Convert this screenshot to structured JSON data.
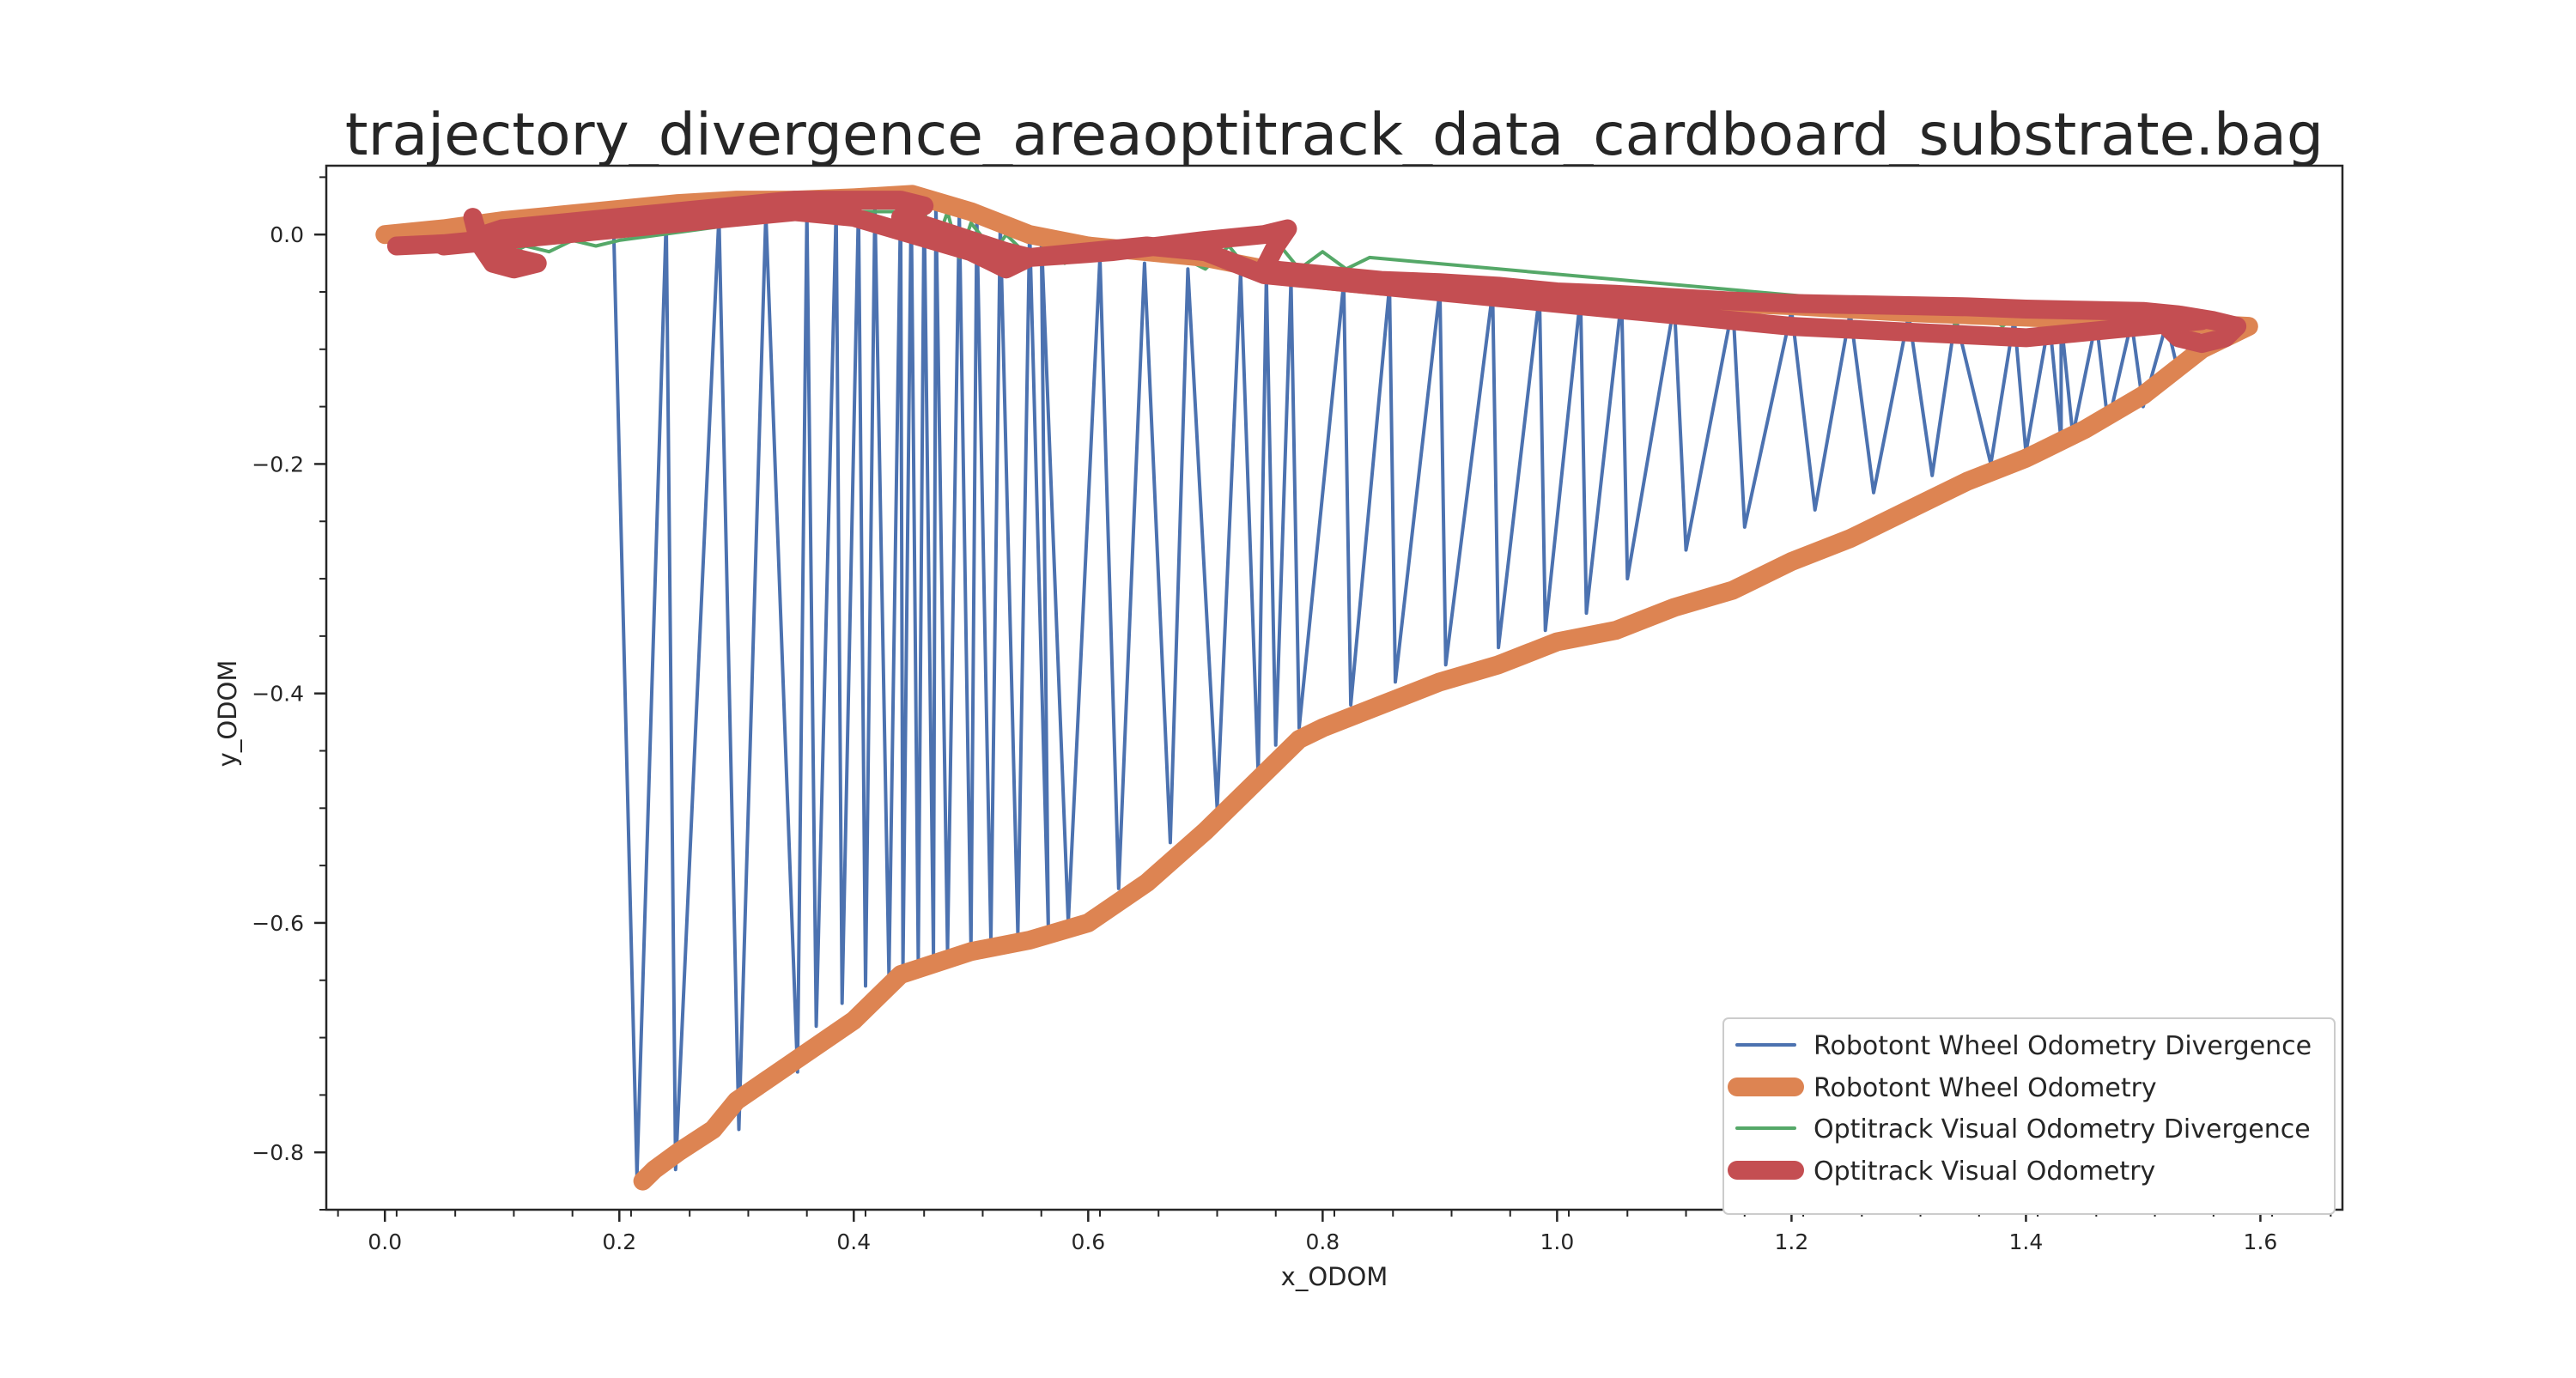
{
  "chart_data": {
    "type": "line",
    "title": "trajectory_divergence_areaoptitrack_data_cardboard_substrate.bag",
    "xlabel": "x_ODOM",
    "ylabel": "y_ODOM",
    "xlim": [
      -0.05,
      1.67
    ],
    "ylim": [
      -0.85,
      0.06
    ],
    "xticks": [
      0.0,
      0.2,
      0.4,
      0.6,
      0.8,
      1.0,
      1.2,
      1.4,
      1.6
    ],
    "xtick_labels": [
      "0.0",
      "0.2",
      "0.4",
      "0.6",
      "0.8",
      "1.0",
      "1.2",
      "1.4",
      "1.6"
    ],
    "yticks": [
      0.0,
      -0.2,
      -0.4,
      -0.6,
      -0.8
    ],
    "ytick_labels": [
      "0.0",
      "−0.2",
      "−0.4",
      "−0.6",
      "−0.8"
    ],
    "grid": false,
    "legend_position": "lower-right",
    "series": [
      {
        "name": "Robotont Wheel Odometry Divergence",
        "color": "#4c72b0",
        "style": "thin",
        "x": [
          0.0,
          0.195,
          0.215,
          0.24,
          0.248,
          0.285,
          0.302,
          0.325,
          0.352,
          0.36,
          0.368,
          0.385,
          0.39,
          0.404,
          0.41,
          0.418,
          0.43,
          0.44,
          0.442,
          0.449,
          0.455,
          0.46,
          0.468,
          0.47,
          0.48,
          0.49,
          0.5,
          0.505,
          0.517,
          0.525,
          0.54,
          0.55,
          0.566,
          0.56,
          0.583,
          0.61,
          0.626,
          0.648,
          0.67,
          0.685,
          0.71,
          0.73,
          0.745,
          0.752,
          0.76,
          0.773,
          0.78,
          0.818,
          0.824,
          0.857,
          0.862,
          0.9,
          0.905,
          0.945,
          0.95,
          0.985,
          0.99,
          1.02,
          1.025,
          1.055,
          1.06,
          1.1,
          1.11,
          1.15,
          1.16,
          1.2,
          1.22,
          1.25,
          1.27,
          1.3,
          1.32,
          1.34,
          1.37,
          1.39,
          1.4,
          1.42,
          1.43,
          1.43,
          1.44,
          1.46,
          1.47,
          1.49,
          1.5,
          1.52,
          1.53,
          1.55
        ],
        "y": [
          0.0,
          0.01,
          -0.82,
          0.014,
          -0.815,
          0.016,
          -0.78,
          0.018,
          -0.73,
          0.02,
          -0.69,
          0.022,
          -0.67,
          0.024,
          -0.655,
          0.026,
          -0.645,
          0.028,
          -0.638,
          0.03,
          -0.633,
          0.03,
          -0.628,
          0.03,
          -0.625,
          0.02,
          -0.62,
          0.015,
          -0.615,
          0.01,
          -0.61,
          0.005,
          -0.605,
          0.0,
          -0.6,
          -0.02,
          -0.57,
          -0.025,
          -0.53,
          -0.03,
          -0.5,
          -0.033,
          -0.47,
          -0.036,
          -0.445,
          -0.04,
          -0.43,
          -0.042,
          -0.41,
          -0.045,
          -0.39,
          -0.048,
          -0.375,
          -0.05,
          -0.36,
          -0.052,
          -0.345,
          -0.054,
          -0.33,
          -0.056,
          -0.3,
          -0.06,
          -0.275,
          -0.062,
          -0.255,
          -0.066,
          -0.24,
          -0.068,
          -0.225,
          -0.07,
          -0.21,
          -0.072,
          -0.2,
          -0.073,
          -0.19,
          -0.074,
          -0.18,
          -0.075,
          -0.175,
          -0.075,
          -0.165,
          -0.076,
          -0.15,
          -0.077,
          -0.12,
          -0.08
        ]
      },
      {
        "name": "Robotont Wheel Odometry",
        "color": "#dd8452",
        "style": "thick",
        "x": [
          0.0,
          0.05,
          0.1,
          0.15,
          0.2,
          0.25,
          0.3,
          0.35,
          0.4,
          0.45,
          0.5,
          0.55,
          0.6,
          0.65,
          0.7,
          0.75,
          0.8,
          0.85,
          0.9,
          0.95,
          1.0,
          1.05,
          1.1,
          1.15,
          1.2,
          1.25,
          1.3,
          1.35,
          1.4,
          1.45,
          1.5,
          1.55,
          1.59,
          1.55,
          1.5,
          1.45,
          1.41,
          1.4,
          1.35,
          1.3,
          1.25,
          1.2,
          1.15,
          1.1,
          1.05,
          1.0,
          0.95,
          0.9,
          0.85,
          0.8,
          0.78,
          0.75,
          0.7,
          0.65,
          0.6,
          0.55,
          0.5,
          0.44,
          0.4,
          0.35,
          0.3,
          0.28,
          0.25,
          0.23,
          0.22
        ],
        "y": [
          0.0,
          0.005,
          0.012,
          0.017,
          0.022,
          0.027,
          0.03,
          0.03,
          0.032,
          0.035,
          0.02,
          0.0,
          -0.01,
          -0.015,
          -0.02,
          -0.03,
          -0.04,
          -0.045,
          -0.048,
          -0.05,
          -0.052,
          -0.055,
          -0.058,
          -0.06,
          -0.062,
          -0.065,
          -0.068,
          -0.07,
          -0.072,
          -0.074,
          -0.076,
          -0.078,
          -0.08,
          -0.1,
          -0.14,
          -0.17,
          -0.19,
          -0.195,
          -0.215,
          -0.24,
          -0.265,
          -0.285,
          -0.31,
          -0.325,
          -0.345,
          -0.355,
          -0.375,
          -0.39,
          -0.41,
          -0.43,
          -0.44,
          -0.47,
          -0.52,
          -0.565,
          -0.6,
          -0.615,
          -0.625,
          -0.645,
          -0.685,
          -0.72,
          -0.755,
          -0.78,
          -0.8,
          -0.815,
          -0.825
        ]
      },
      {
        "name": "Optitrack Visual Odometry Divergence",
        "color": "#55a868",
        "style": "thin",
        "x": [
          0.1,
          0.12,
          0.14,
          0.16,
          0.18,
          0.2,
          0.38,
          0.46,
          0.47,
          0.48,
          0.49,
          0.5,
          0.52,
          0.53,
          0.55,
          0.57,
          0.58,
          0.6,
          0.62,
          0.68,
          0.7,
          0.72,
          0.74,
          0.76,
          0.78,
          0.8,
          0.82,
          0.84,
          1.28,
          1.3,
          1.32,
          1.34,
          1.36,
          1.38,
          1.4,
          1.42,
          1.44,
          1.46,
          1.48,
          1.5,
          1.52,
          1.54
        ],
        "y": [
          -0.02,
          -0.01,
          -0.015,
          -0.005,
          -0.01,
          -0.005,
          0.02,
          0.02,
          -0.01,
          0.02,
          -0.02,
          0.01,
          -0.015,
          0.0,
          -0.02,
          -0.005,
          -0.025,
          -0.01,
          -0.02,
          -0.02,
          -0.03,
          -0.01,
          -0.035,
          -0.005,
          -0.03,
          -0.015,
          -0.03,
          -0.02,
          -0.06,
          -0.075,
          -0.06,
          -0.078,
          -0.062,
          -0.08,
          -0.062,
          -0.082,
          -0.064,
          -0.084,
          -0.065,
          -0.085,
          -0.066,
          -0.08
        ]
      },
      {
        "name": "Optitrack Visual Odometry",
        "color": "#c44e52",
        "style": "thick",
        "x": [
          0.01,
          0.05,
          0.08,
          0.075,
          0.082,
          0.092,
          0.11,
          0.13,
          0.11,
          0.09,
          0.085,
          0.1,
          0.15,
          0.2,
          0.25,
          0.3,
          0.35,
          0.4,
          0.44,
          0.46,
          0.45,
          0.44,
          0.47,
          0.5,
          0.53,
          0.55,
          0.58,
          0.62,
          0.66,
          0.7,
          0.75,
          0.77,
          0.76,
          0.75,
          0.8,
          0.85,
          0.9,
          0.95,
          1.0,
          1.05,
          1.1,
          1.15,
          1.2,
          1.25,
          1.3,
          1.35,
          1.4,
          1.45,
          1.5,
          1.53,
          1.56,
          1.58,
          1.57,
          1.55,
          1.53,
          1.52,
          1.53,
          1.55,
          1.4,
          1.3,
          1.2,
          1.1,
          1.0,
          0.95,
          0.9,
          0.85,
          0.8,
          0.75,
          0.7,
          0.65,
          0.6,
          0.55,
          0.53,
          0.5,
          0.45,
          0.4,
          0.35,
          0.3,
          0.25,
          0.2,
          0.15,
          0.1,
          0.05
        ],
        "y": [
          -0.01,
          -0.008,
          -0.005,
          0.015,
          -0.01,
          -0.025,
          -0.03,
          -0.025,
          -0.02,
          -0.01,
          0.0,
          0.005,
          0.01,
          0.015,
          0.02,
          0.025,
          0.03,
          0.03,
          0.03,
          0.025,
          0.02,
          0.015,
          0.005,
          -0.005,
          -0.015,
          -0.02,
          -0.018,
          -0.015,
          -0.01,
          -0.005,
          0.0,
          0.005,
          -0.01,
          -0.03,
          -0.035,
          -0.04,
          -0.042,
          -0.045,
          -0.05,
          -0.052,
          -0.055,
          -0.058,
          -0.06,
          -0.061,
          -0.062,
          -0.063,
          -0.065,
          -0.066,
          -0.067,
          -0.07,
          -0.075,
          -0.08,
          -0.09,
          -0.095,
          -0.09,
          -0.08,
          -0.075,
          -0.075,
          -0.09,
          -0.085,
          -0.08,
          -0.07,
          -0.06,
          -0.055,
          -0.05,
          -0.045,
          -0.04,
          -0.035,
          -0.015,
          -0.01,
          -0.015,
          -0.02,
          -0.03,
          -0.015,
          0.0,
          0.015,
          0.02,
          0.015,
          0.01,
          0.005,
          0.0,
          -0.005,
          -0.01
        ]
      }
    ]
  }
}
